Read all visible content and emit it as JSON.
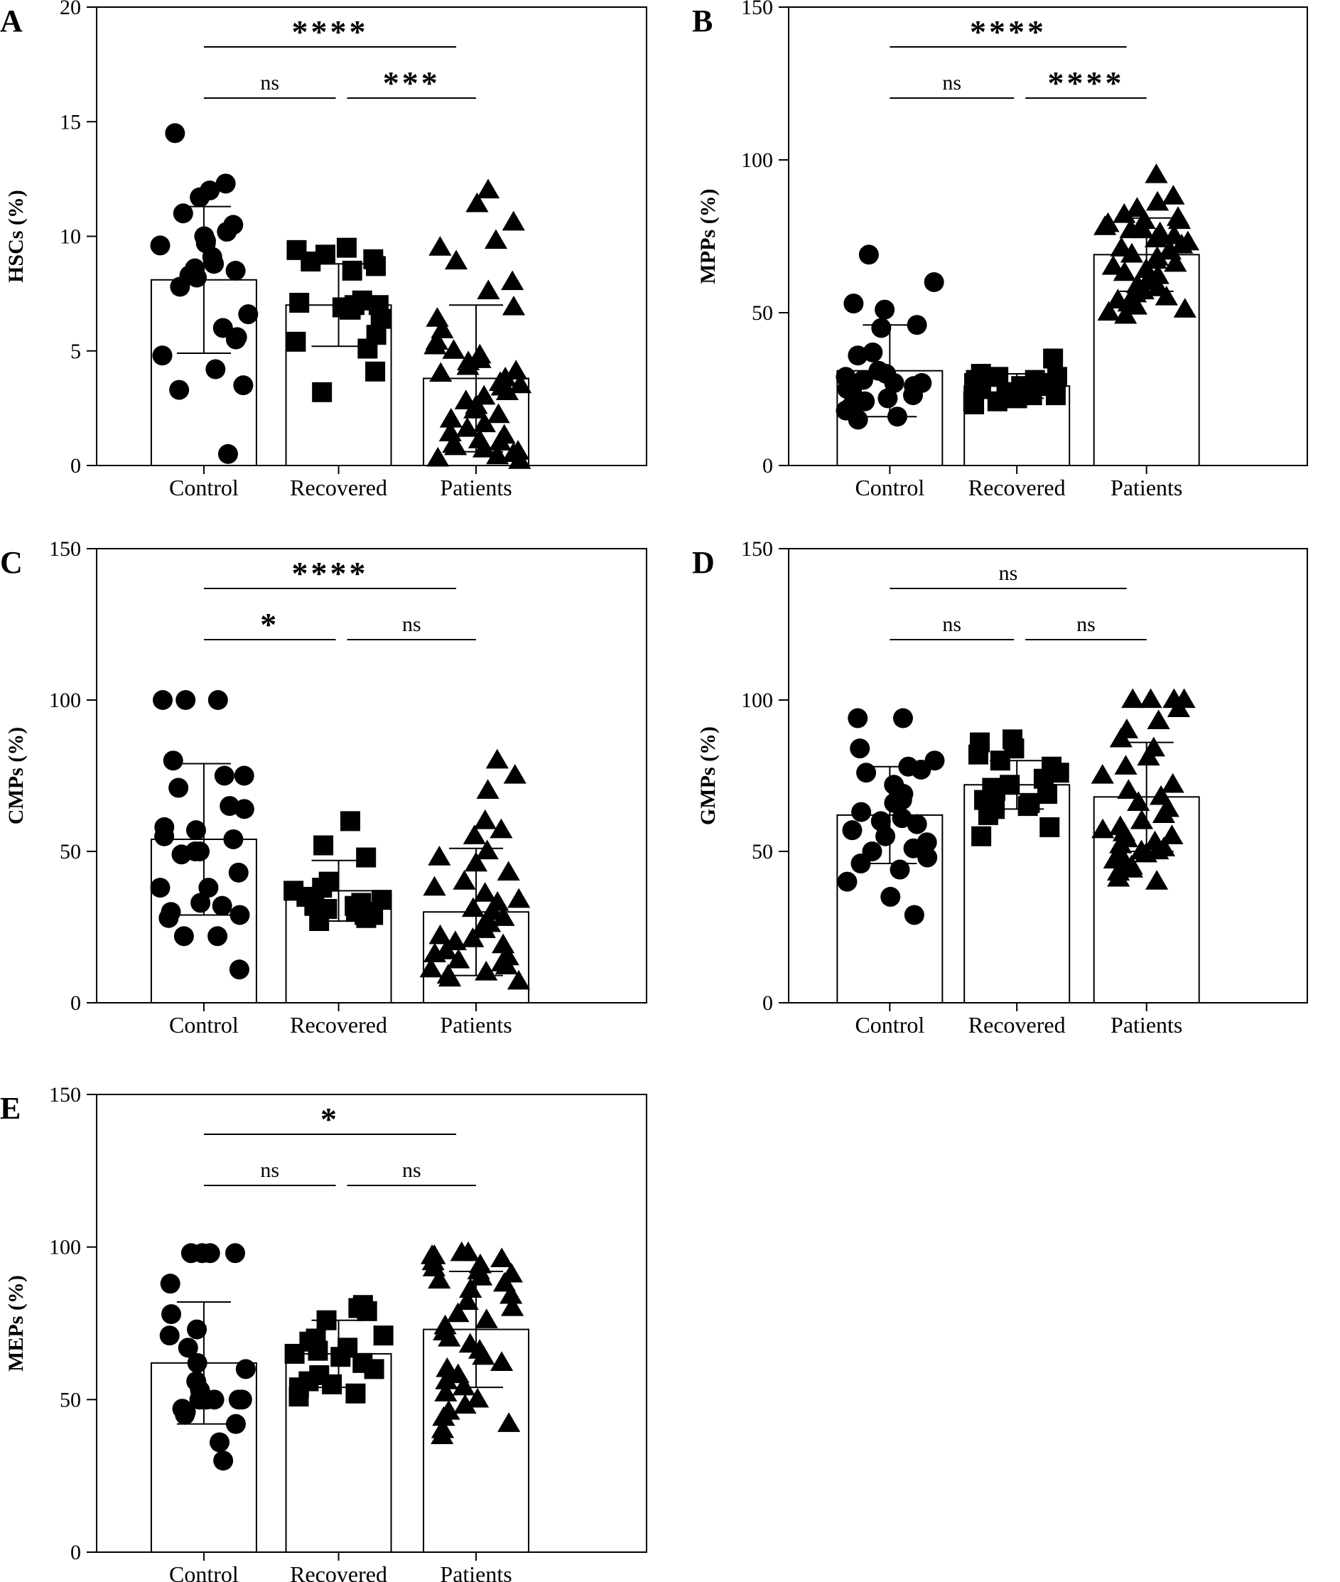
{
  "chart_data": [
    {
      "panel": "A",
      "type": "bar",
      "ylabel": "HSCs (%)",
      "ylim": [
        0,
        20
      ],
      "yticks": [
        0,
        5,
        10,
        15,
        20
      ],
      "categories": [
        "Control",
        "Recovered",
        "Patients"
      ],
      "values": [
        8.1,
        7.0,
        3.8
      ],
      "errors": [
        3.2,
        1.8,
        3.2
      ],
      "markers": [
        "circle",
        "square",
        "triangle"
      ],
      "points": [
        [
          14.5,
          12.3,
          12.0,
          11.7,
          11.0,
          10.5,
          10.2,
          10.0,
          9.8,
          9.7,
          9.6,
          9.1,
          8.8,
          8.6,
          8.5,
          8.3,
          8.2,
          7.8,
          6.6,
          6.0,
          5.6,
          5.5,
          4.8,
          4.2,
          3.5,
          3.3,
          0.5
        ],
        [
          9.5,
          9.4,
          9.2,
          9.0,
          8.9,
          8.7,
          8.5,
          7.2,
          7.1,
          7.0,
          7.0,
          6.9,
          6.9,
          6.8,
          6.8,
          6.4,
          5.7,
          5.4,
          5.1,
          4.1,
          3.2
        ],
        [
          12.0,
          11.4,
          10.6,
          9.8,
          9.5,
          8.9,
          8.0,
          7.6,
          6.9,
          6.4,
          5.9,
          5.4,
          5.2,
          5.0,
          4.8,
          4.6,
          4.5,
          4.3,
          4.1,
          4.0,
          3.8,
          3.6,
          3.5,
          3.4,
          3.2,
          3.0,
          2.8,
          2.6,
          2.4,
          2.2,
          2.0,
          1.8,
          1.6,
          1.4,
          1.3,
          1.1,
          1.0,
          0.9,
          0.8,
          0.7,
          0.6,
          0.5,
          0.4,
          0.3,
          0.2
        ]
      ],
      "comparisons": [
        {
          "from": 0,
          "to": 2,
          "label": "****",
          "level": 2
        },
        {
          "from": 0,
          "to": 1,
          "label": "ns",
          "level": 1
        },
        {
          "from": 1,
          "to": 2,
          "label": "***",
          "level": 1
        }
      ]
    },
    {
      "panel": "B",
      "type": "bar",
      "ylabel": "MPPs (%)",
      "ylim": [
        0,
        150
      ],
      "yticks": [
        0,
        50,
        100,
        150
      ],
      "categories": [
        "Control",
        "Recovered",
        "Patients"
      ],
      "values": [
        31,
        26,
        69
      ],
      "errors": [
        15,
        4,
        12
      ],
      "markers": [
        "circle",
        "square",
        "triangle"
      ],
      "points": [
        [
          69,
          60,
          53,
          51,
          46,
          45,
          37,
          36,
          31,
          30,
          29,
          28,
          27,
          27,
          26,
          25,
          24,
          23,
          22,
          21,
          20,
          19,
          18,
          16,
          15
        ],
        [
          35,
          30,
          29,
          29,
          28,
          28,
          27,
          27,
          26,
          26,
          25,
          25,
          24,
          24,
          23,
          23,
          22,
          21,
          21,
          20
        ],
        [
          95,
          88,
          86,
          84,
          82,
          81,
          80,
          80,
          79,
          78,
          77,
          77,
          76,
          75,
          74,
          73,
          72,
          71,
          70,
          70,
          69,
          68,
          67,
          66,
          65,
          64,
          63,
          62,
          61,
          60,
          59,
          58,
          57,
          56,
          55,
          54,
          53,
          52,
          51,
          50,
          49
        ]
      ],
      "comparisons": [
        {
          "from": 0,
          "to": 2,
          "label": "****",
          "level": 2
        },
        {
          "from": 0,
          "to": 1,
          "label": "ns",
          "level": 1
        },
        {
          "from": 1,
          "to": 2,
          "label": "****",
          "level": 1
        }
      ]
    },
    {
      "panel": "C",
      "type": "bar",
      "ylabel": "CMPs (%)",
      "ylim": [
        0,
        150
      ],
      "yticks": [
        0,
        50,
        100,
        150
      ],
      "categories": [
        "Control",
        "Recovered",
        "Patients"
      ],
      "values": [
        54,
        37,
        30
      ],
      "errors": [
        25,
        10,
        21
      ],
      "markers": [
        "circle",
        "square",
        "triangle"
      ],
      "points": [
        [
          100,
          100,
          100,
          80,
          75,
          75,
          71,
          65,
          64,
          58,
          57,
          55,
          54,
          50,
          50,
          49,
          43,
          38,
          38,
          33,
          32,
          30,
          29,
          28,
          22,
          22,
          11
        ],
        [
          60,
          52,
          48,
          40,
          38,
          37,
          35,
          34,
          33,
          32,
          32,
          31,
          31,
          30,
          30,
          29,
          29,
          28,
          27
        ],
        [
          80,
          75,
          70,
          60,
          57,
          55,
          50,
          48,
          46,
          43,
          40,
          38,
          36,
          34,
          33,
          31,
          30,
          28,
          26,
          25,
          24,
          22,
          21,
          20,
          19,
          17,
          16,
          15,
          14,
          13,
          12,
          11,
          10,
          9,
          8,
          7
        ]
      ],
      "comparisons": [
        {
          "from": 0,
          "to": 2,
          "label": "****",
          "level": 2
        },
        {
          "from": 0,
          "to": 1,
          "label": "*",
          "level": 1
        },
        {
          "from": 1,
          "to": 2,
          "label": "ns",
          "level": 1
        }
      ]
    },
    {
      "panel": "D",
      "type": "bar",
      "ylabel": "GMPs (%)",
      "ylim": [
        0,
        150
      ],
      "yticks": [
        0,
        50,
        100,
        150
      ],
      "categories": [
        "Control",
        "Recovered",
        "Patients"
      ],
      "values": [
        62,
        72,
        68
      ],
      "errors": [
        16,
        8,
        18
      ],
      "markers": [
        "circle",
        "square",
        "triangle"
      ],
      "points": [
        [
          94,
          94,
          84,
          80,
          78,
          77,
          76,
          72,
          69,
          67,
          66,
          63,
          61,
          60,
          59,
          57,
          55,
          53,
          51,
          50,
          48,
          46,
          44,
          40,
          35,
          29
        ],
        [
          87,
          86,
          84,
          82,
          80,
          78,
          76,
          74,
          72,
          71,
          70,
          69,
          67,
          66,
          65,
          64,
          62,
          58,
          55
        ],
        [
          100,
          100,
          100,
          100,
          97,
          93,
          90,
          87,
          84,
          81,
          78,
          75,
          72,
          70,
          68,
          66,
          64,
          62,
          60,
          58,
          57,
          56,
          55,
          54,
          53,
          52,
          51,
          50,
          50,
          49,
          48,
          47,
          46,
          45,
          44,
          43,
          41,
          40
        ]
      ],
      "comparisons": [
        {
          "from": 0,
          "to": 2,
          "label": "ns",
          "level": 2
        },
        {
          "from": 0,
          "to": 1,
          "label": "ns",
          "level": 1
        },
        {
          "from": 1,
          "to": 2,
          "label": "ns",
          "level": 1
        }
      ]
    },
    {
      "panel": "E",
      "type": "bar",
      "ylabel": "MEPs (%)",
      "ylim": [
        0,
        150
      ],
      "yticks": [
        0,
        50,
        100,
        150
      ],
      "categories": [
        "Control",
        "Recovered",
        "Patients"
      ],
      "values": [
        62,
        65,
        73
      ],
      "errors": [
        20,
        11,
        19
      ],
      "markers": [
        "circle",
        "square",
        "triangle"
      ],
      "points": [
        [
          98,
          98,
          98,
          98,
          88,
          78,
          73,
          71,
          67,
          62,
          60,
          56,
          53,
          50,
          50,
          50,
          50,
          50,
          50,
          47,
          46,
          45,
          42,
          36,
          30
        ],
        [
          81,
          80,
          79,
          76,
          71,
          70,
          69,
          67,
          66,
          65,
          64,
          62,
          60,
          58,
          56,
          55,
          54,
          52,
          51
        ],
        [
          98,
          98,
          97,
          97,
          96,
          95,
          94,
          93,
          92,
          91,
          90,
          89,
          88,
          86,
          84,
          82,
          80,
          78,
          76,
          74,
          72,
          70,
          68,
          66,
          64,
          62,
          60,
          58,
          56,
          54,
          52,
          50,
          48,
          46,
          44,
          42,
          40,
          38
        ]
      ],
      "comparisons": [
        {
          "from": 0,
          "to": 2,
          "label": "*",
          "level": 2
        },
        {
          "from": 0,
          "to": 1,
          "label": "ns",
          "level": 1
        },
        {
          "from": 1,
          "to": 2,
          "label": "ns",
          "level": 1
        }
      ]
    }
  ]
}
